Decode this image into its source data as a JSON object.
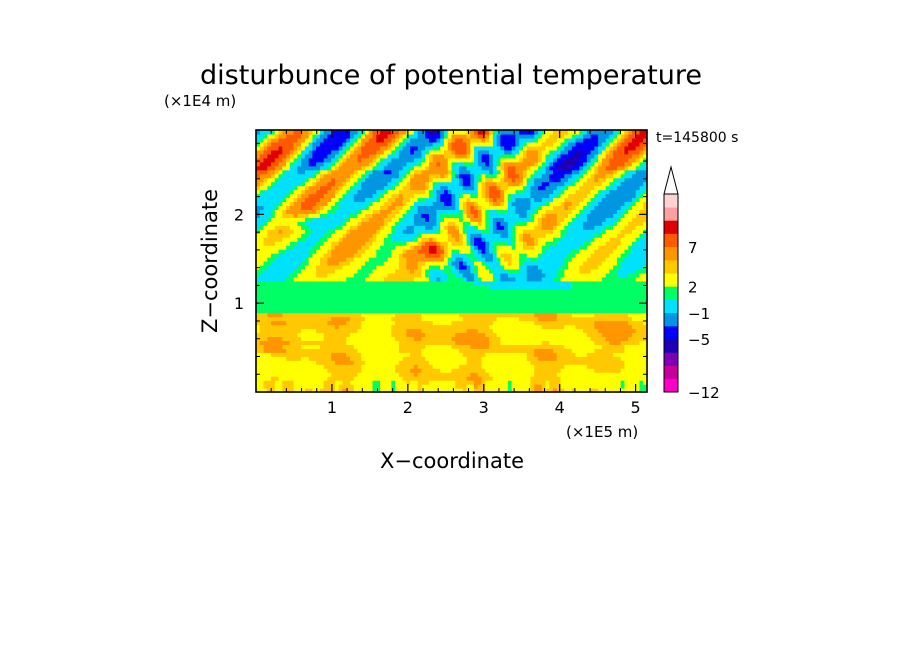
{
  "chart_data": {
    "type": "heatmap",
    "title": "disturbunce of potential temperature",
    "xlabel": "X−coordinate",
    "ylabel": "Z−coordinate",
    "x_unit": "(×1E5 m)",
    "y_unit": "(×1E4 m)",
    "time_label": "t=145800 s",
    "xlim": [
      0,
      5.15
    ],
    "ylim": [
      0,
      2.95
    ],
    "x_ticks": [
      "1",
      "2",
      "3",
      "4",
      "5"
    ],
    "y_ticks": [
      "1",
      "2"
    ],
    "colorbar": {
      "levels": [
        -12,
        -11,
        -9,
        -7,
        -5,
        -3,
        -1,
        0,
        2,
        3,
        5,
        7,
        9,
        11
      ],
      "labels": [
        "−12",
        "−5",
        "−1",
        "2",
        "7"
      ],
      "colors": [
        "#ff00c8",
        "#c8009b",
        "#7d00b4",
        "#1e00b4",
        "#0000ff",
        "#0096e1",
        "#00e1ff",
        "#00ff64",
        "#ffff00",
        "#ffc800",
        "#ff9600",
        "#ff5a00",
        "#e10000",
        "#ffa0a0",
        "#ffd2d2"
      ]
    },
    "features": [
      {
        "x": 0.6,
        "z": 1.92,
        "value": -4,
        "rx": 0.35,
        "rz": 0.08
      },
      {
        "x": 2.3,
        "z": 1.6,
        "value": 5,
        "rx": 0.45,
        "rz": 0.12
      },
      {
        "x": 3.6,
        "z": 1.3,
        "value": -1,
        "rx": 0.7,
        "rz": 0.12
      }
    ]
  }
}
